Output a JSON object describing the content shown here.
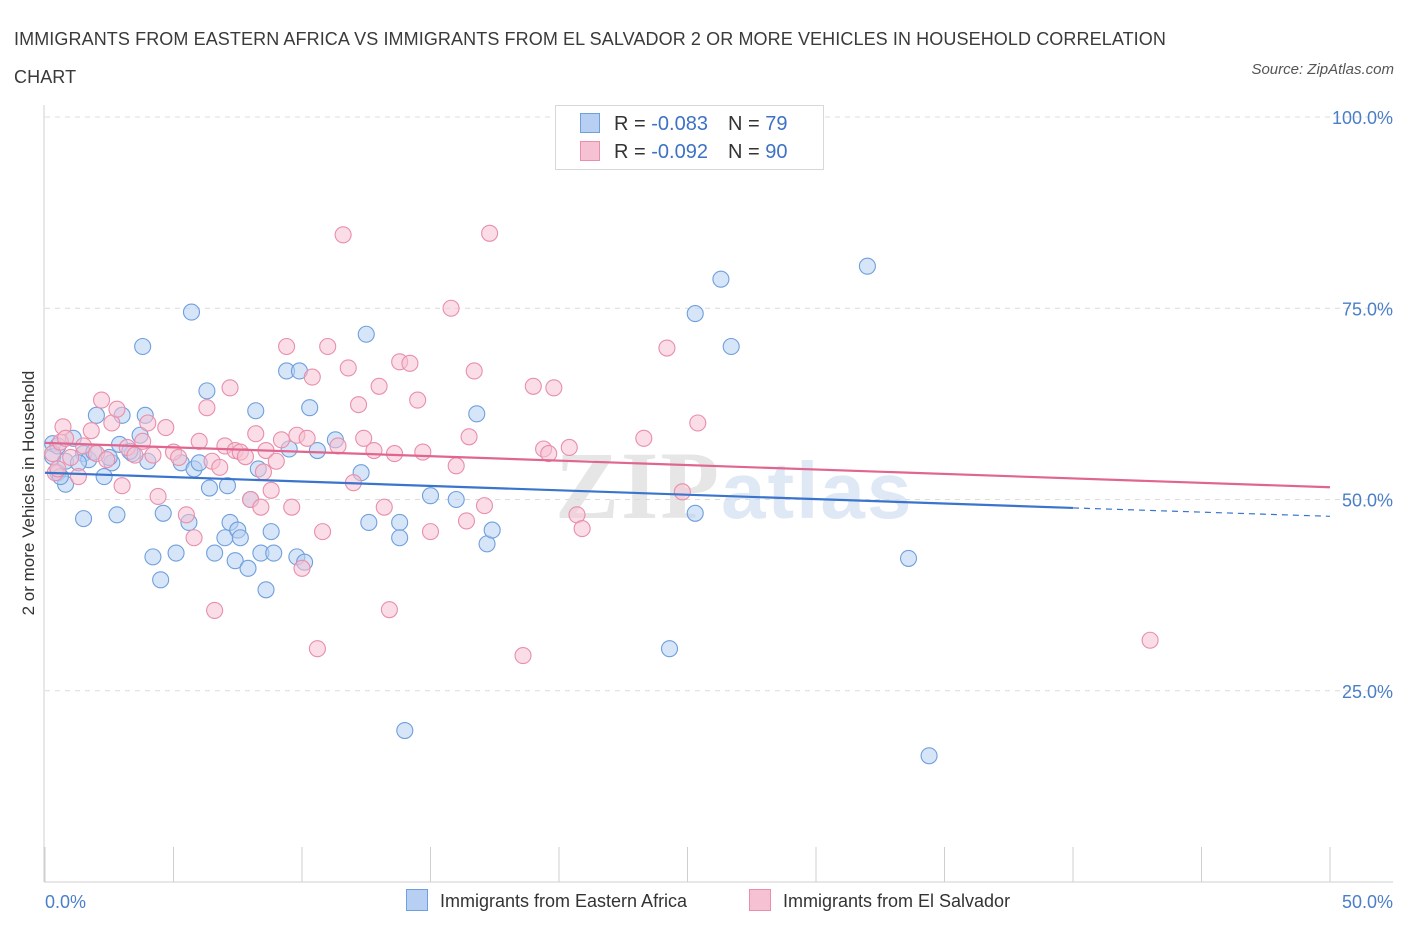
{
  "header": {
    "title": "IMMIGRANTS FROM EASTERN AFRICA VS IMMIGRANTS FROM EL SALVADOR 2 OR MORE VEHICLES IN HOUSEHOLD CORRELATION CHART",
    "source": "Source: ZipAtlas.com"
  },
  "legend": {
    "rows": [
      {
        "r_label": "R = ",
        "r_value": "-0.083",
        "n_label": "N = ",
        "n_value": "79"
      },
      {
        "r_label": "R = ",
        "r_value": "-0.092",
        "n_label": "N = ",
        "n_value": "90"
      }
    ]
  },
  "bottom_legend": {
    "series1": "Immigrants from Eastern Africa",
    "series2": "Immigrants from El Salvador"
  },
  "watermark": {
    "zip": "ZIP",
    "atlas": "atlas"
  },
  "colors": {
    "blue_fill": "#b7cff2",
    "blue_stroke": "#6f9fdd",
    "blue_line": "#3a74cc",
    "pink_fill": "#f6c1d2",
    "pink_stroke": "#e98eab",
    "pink_line": "#e0668f",
    "grid": "#dcdcdc",
    "tick_text": "#4a7fc8"
  },
  "chart_data": {
    "type": "scatter",
    "title": "IMMIGRANTS FROM EASTERN AFRICA VS IMMIGRANTS FROM EL SALVADOR 2 OR MORE VEHICLES IN HOUSEHOLD CORRELATION CHART",
    "xlabel": "",
    "ylabel": "2 or more Vehicles in Household",
    "xlim": [
      0,
      50
    ],
    "ylim": [
      0,
      100
    ],
    "x_tick_labels": [
      "0.0%",
      "50.0%"
    ],
    "y_ticks": [
      25,
      50,
      75,
      100
    ],
    "y_tick_labels": [
      "25.0%",
      "50.0%",
      "75.0%",
      "100.0%"
    ],
    "grid": true,
    "legend_position": "top-center",
    "series": [
      {
        "name": "Immigrants from Eastern Africa",
        "color": "#6f9fdd",
        "R": -0.083,
        "N": 79,
        "trend": {
          "x0": 0,
          "y0": 53.5,
          "x1": 40,
          "y1": 48.9,
          "dashed_to_x": 50,
          "dashed_to_y": 47.8
        },
        "points": [
          [
            0.3,
            57.3
          ],
          [
            0.3,
            55.6
          ],
          [
            0.5,
            53.5
          ],
          [
            0.5,
            57.0
          ],
          [
            0.8,
            55.0
          ],
          [
            0.8,
            52.0
          ],
          [
            1.1,
            58.0
          ],
          [
            1.5,
            56.0
          ],
          [
            1.7,
            55.2
          ],
          [
            1.9,
            56.2
          ],
          [
            2.0,
            61.0
          ],
          [
            2.3,
            53.0
          ],
          [
            2.6,
            54.8
          ],
          [
            2.9,
            57.2
          ],
          [
            3.0,
            61.0
          ],
          [
            3.4,
            56.0
          ],
          [
            3.7,
            58.4
          ],
          [
            3.9,
            61.0
          ],
          [
            4.2,
            42.5
          ],
          [
            4.5,
            39.5
          ],
          [
            4.6,
            48.2
          ],
          [
            5.1,
            43.0
          ],
          [
            5.3,
            54.8
          ],
          [
            5.6,
            47.0
          ],
          [
            5.7,
            74.5
          ],
          [
            5.8,
            54.0
          ],
          [
            6.0,
            54.8
          ],
          [
            6.3,
            64.2
          ],
          [
            6.6,
            43.0
          ],
          [
            7.0,
            45.0
          ],
          [
            7.1,
            51.8
          ],
          [
            7.2,
            47.0
          ],
          [
            7.4,
            42.0
          ],
          [
            7.5,
            46.0
          ],
          [
            7.6,
            45.0
          ],
          [
            7.9,
            41.0
          ],
          [
            8.0,
            50.0
          ],
          [
            8.2,
            61.6
          ],
          [
            8.3,
            54.0
          ],
          [
            8.4,
            43.0
          ],
          [
            8.6,
            38.2
          ],
          [
            8.8,
            45.8
          ],
          [
            8.9,
            43.0
          ],
          [
            9.4,
            66.8
          ],
          [
            9.5,
            56.6
          ],
          [
            9.8,
            42.5
          ],
          [
            9.9,
            66.8
          ],
          [
            10.1,
            41.8
          ],
          [
            10.3,
            62.0
          ],
          [
            10.6,
            56.4
          ],
          [
            11.3,
            57.8
          ],
          [
            12.3,
            53.5
          ],
          [
            12.5,
            71.6
          ],
          [
            12.6,
            47.0
          ],
          [
            13.8,
            47.0
          ],
          [
            13.8,
            45.0
          ],
          [
            14.0,
            19.8
          ],
          [
            15.0,
            50.5
          ],
          [
            16.0,
            50.0
          ],
          [
            16.8,
            61.2
          ],
          [
            17.2,
            44.2
          ],
          [
            17.4,
            46.0
          ],
          [
            3.8,
            70.0
          ],
          [
            24.3,
            30.5
          ],
          [
            25.3,
            74.3
          ],
          [
            25.3,
            48.2
          ],
          [
            26.3,
            78.8
          ],
          [
            26.7,
            70.0
          ],
          [
            32.0,
            80.5
          ],
          [
            33.6,
            42.3
          ],
          [
            34.4,
            16.5
          ],
          [
            1.5,
            47.5
          ],
          [
            2.8,
            48.0
          ],
          [
            0.6,
            53.0
          ],
          [
            2.5,
            55.5
          ],
          [
            4.0,
            55.0
          ],
          [
            1.3,
            54.8
          ],
          [
            6.4,
            51.5
          ],
          [
            3.3,
            56.3
          ]
        ]
      },
      {
        "name": "Immigrants from El Salvador",
        "color": "#e98eab",
        "R": -0.092,
        "N": 90,
        "trend": {
          "x0": 0,
          "y0": 57.4,
          "x1": 50,
          "y1": 51.6
        },
        "points": [
          [
            0.3,
            56.0
          ],
          [
            0.4,
            53.5
          ],
          [
            0.5,
            54.0
          ],
          [
            0.6,
            57.5
          ],
          [
            0.7,
            59.5
          ],
          [
            0.8,
            58.0
          ],
          [
            1.0,
            55.5
          ],
          [
            1.3,
            53.0
          ],
          [
            1.5,
            57.0
          ],
          [
            1.8,
            59.0
          ],
          [
            2.0,
            56.0
          ],
          [
            2.2,
            63.0
          ],
          [
            2.4,
            55.2
          ],
          [
            2.6,
            60.0
          ],
          [
            2.8,
            61.8
          ],
          [
            3.0,
            51.8
          ],
          [
            3.2,
            56.8
          ],
          [
            3.5,
            55.8
          ],
          [
            3.8,
            57.6
          ],
          [
            4.0,
            60.0
          ],
          [
            4.2,
            55.8
          ],
          [
            4.4,
            50.4
          ],
          [
            4.7,
            59.4
          ],
          [
            5.0,
            56.2
          ],
          [
            5.2,
            55.5
          ],
          [
            5.5,
            48.0
          ],
          [
            5.8,
            45.0
          ],
          [
            6.0,
            57.6
          ],
          [
            6.3,
            62.0
          ],
          [
            6.5,
            55.0
          ],
          [
            6.6,
            35.5
          ],
          [
            6.8,
            54.2
          ],
          [
            7.0,
            57.0
          ],
          [
            7.2,
            64.6
          ],
          [
            7.4,
            56.4
          ],
          [
            7.6,
            56.2
          ],
          [
            7.8,
            55.6
          ],
          [
            8.0,
            50.0
          ],
          [
            8.2,
            58.6
          ],
          [
            8.4,
            49.0
          ],
          [
            8.5,
            53.6
          ],
          [
            8.6,
            56.4
          ],
          [
            8.8,
            51.2
          ],
          [
            9.0,
            55.0
          ],
          [
            9.2,
            57.8
          ],
          [
            9.4,
            70.0
          ],
          [
            9.6,
            49.0
          ],
          [
            9.8,
            58.4
          ],
          [
            10.0,
            41.0
          ],
          [
            10.2,
            58.0
          ],
          [
            10.4,
            66.0
          ],
          [
            10.6,
            30.5
          ],
          [
            10.8,
            45.8
          ],
          [
            11.0,
            70.0
          ],
          [
            11.4,
            57.0
          ],
          [
            11.8,
            67.2
          ],
          [
            11.6,
            84.6
          ],
          [
            12.0,
            52.2
          ],
          [
            12.2,
            62.4
          ],
          [
            12.4,
            58.0
          ],
          [
            12.8,
            56.4
          ],
          [
            13.0,
            64.8
          ],
          [
            13.2,
            49.0
          ],
          [
            13.4,
            35.6
          ],
          [
            13.6,
            56.0
          ],
          [
            13.8,
            68.0
          ],
          [
            14.2,
            67.8
          ],
          [
            14.5,
            63.0
          ],
          [
            14.7,
            56.2
          ],
          [
            15.0,
            45.8
          ],
          [
            15.8,
            75.0
          ],
          [
            16.0,
            54.4
          ],
          [
            16.4,
            47.2
          ],
          [
            16.5,
            58.2
          ],
          [
            16.7,
            66.8
          ],
          [
            17.1,
            49.2
          ],
          [
            17.3,
            84.8
          ],
          [
            18.6,
            29.6
          ],
          [
            19.0,
            64.8
          ],
          [
            19.4,
            56.6
          ],
          [
            19.6,
            56.0
          ],
          [
            19.8,
            64.6
          ],
          [
            20.4,
            56.8
          ],
          [
            20.7,
            48.0
          ],
          [
            20.9,
            46.2
          ],
          [
            23.3,
            58.0
          ],
          [
            24.2,
            69.8
          ],
          [
            24.8,
            51.0
          ],
          [
            25.4,
            60.0
          ],
          [
            43.0,
            31.6
          ]
        ]
      }
    ]
  }
}
